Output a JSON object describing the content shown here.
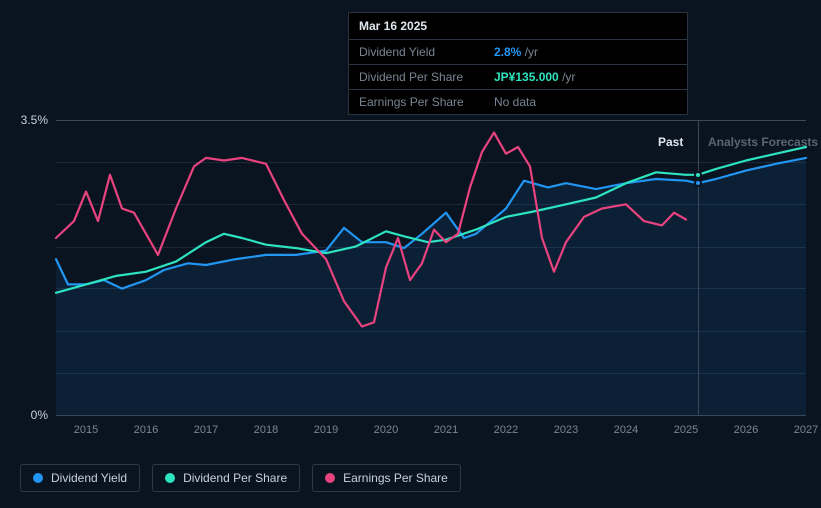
{
  "tooltip": {
    "date": "Mar 16 2025",
    "rows": [
      {
        "label": "Dividend Yield",
        "value": "2.8%",
        "suffix": "/yr",
        "color": "#2196f3"
      },
      {
        "label": "Dividend Per Share",
        "value": "JP¥135.000",
        "suffix": "/yr",
        "color": "#2de3c0"
      },
      {
        "label": "Earnings Per Share",
        "value": "No data",
        "suffix": "",
        "color": "#7a8594"
      }
    ]
  },
  "chart": {
    "type": "line",
    "background_color": "#0a1420",
    "grid_color": "#1a2838",
    "axis_color": "#3a4858",
    "text_color": "#c8d0dc",
    "muted_text_color": "#7a8594",
    "y_axis": {
      "min": 0,
      "max": 3.5,
      "labels": [
        "0%",
        "3.5%"
      ],
      "label_positions": [
        100,
        0
      ]
    },
    "x_axis": {
      "min": 2014.5,
      "max": 2027,
      "ticks": [
        2015,
        2016,
        2017,
        2018,
        2019,
        2020,
        2021,
        2022,
        2023,
        2024,
        2025,
        2026,
        2027
      ]
    },
    "divider_year": 2025.2,
    "past_label": "Past",
    "forecast_label": "Analysts Forecasts",
    "series": [
      {
        "name": "Dividend Yield",
        "color": "#2196f3",
        "fill": true,
        "fill_color": "rgba(33,150,243,0.10)",
        "marker_at_divider": 2.75,
        "data": [
          [
            2014.5,
            1.85
          ],
          [
            2014.7,
            1.55
          ],
          [
            2015.0,
            1.55
          ],
          [
            2015.3,
            1.6
          ],
          [
            2015.6,
            1.5
          ],
          [
            2016.0,
            1.6
          ],
          [
            2016.3,
            1.72
          ],
          [
            2016.7,
            1.8
          ],
          [
            2017.0,
            1.78
          ],
          [
            2017.5,
            1.85
          ],
          [
            2018.0,
            1.9
          ],
          [
            2018.5,
            1.9
          ],
          [
            2019.0,
            1.95
          ],
          [
            2019.3,
            2.22
          ],
          [
            2019.6,
            2.05
          ],
          [
            2020.0,
            2.05
          ],
          [
            2020.3,
            1.98
          ],
          [
            2020.6,
            2.15
          ],
          [
            2021.0,
            2.4
          ],
          [
            2021.3,
            2.1
          ],
          [
            2021.5,
            2.15
          ],
          [
            2022.0,
            2.45
          ],
          [
            2022.3,
            2.78
          ],
          [
            2022.7,
            2.7
          ],
          [
            2023.0,
            2.75
          ],
          [
            2023.5,
            2.68
          ],
          [
            2024.0,
            2.75
          ],
          [
            2024.5,
            2.8
          ],
          [
            2025.0,
            2.78
          ],
          [
            2025.2,
            2.75
          ],
          [
            2025.5,
            2.8
          ],
          [
            2026.0,
            2.9
          ],
          [
            2026.5,
            2.98
          ],
          [
            2027.0,
            3.05
          ]
        ]
      },
      {
        "name": "Dividend Per Share",
        "color": "#2de3c0",
        "fill": false,
        "marker_at_divider": 2.85,
        "data": [
          [
            2014.5,
            1.45
          ],
          [
            2015.0,
            1.55
          ],
          [
            2015.5,
            1.65
          ],
          [
            2016.0,
            1.7
          ],
          [
            2016.5,
            1.82
          ],
          [
            2017.0,
            2.05
          ],
          [
            2017.3,
            2.15
          ],
          [
            2017.6,
            2.1
          ],
          [
            2018.0,
            2.02
          ],
          [
            2018.5,
            1.98
          ],
          [
            2019.0,
            1.92
          ],
          [
            2019.5,
            2.0
          ],
          [
            2020.0,
            2.18
          ],
          [
            2020.3,
            2.12
          ],
          [
            2020.7,
            2.05
          ],
          [
            2021.0,
            2.08
          ],
          [
            2021.5,
            2.2
          ],
          [
            2022.0,
            2.35
          ],
          [
            2022.5,
            2.42
          ],
          [
            2023.0,
            2.5
          ],
          [
            2023.5,
            2.58
          ],
          [
            2024.0,
            2.75
          ],
          [
            2024.5,
            2.88
          ],
          [
            2025.0,
            2.85
          ],
          [
            2025.2,
            2.85
          ],
          [
            2025.5,
            2.92
          ],
          [
            2026.0,
            3.02
          ],
          [
            2026.5,
            3.1
          ],
          [
            2027.0,
            3.18
          ]
        ]
      },
      {
        "name": "Earnings Per Share",
        "color": "#e8437f",
        "fill": false,
        "data": [
          [
            2014.5,
            2.1
          ],
          [
            2014.8,
            2.3
          ],
          [
            2015.0,
            2.65
          ],
          [
            2015.2,
            2.3
          ],
          [
            2015.4,
            2.85
          ],
          [
            2015.6,
            2.45
          ],
          [
            2015.8,
            2.4
          ],
          [
            2016.0,
            2.15
          ],
          [
            2016.2,
            1.9
          ],
          [
            2016.5,
            2.45
          ],
          [
            2016.8,
            2.95
          ],
          [
            2017.0,
            3.05
          ],
          [
            2017.3,
            3.02
          ],
          [
            2017.6,
            3.05
          ],
          [
            2018.0,
            2.98
          ],
          [
            2018.3,
            2.55
          ],
          [
            2018.6,
            2.15
          ],
          [
            2019.0,
            1.85
          ],
          [
            2019.3,
            1.35
          ],
          [
            2019.6,
            1.05
          ],
          [
            2019.8,
            1.1
          ],
          [
            2020.0,
            1.75
          ],
          [
            2020.2,
            2.1
          ],
          [
            2020.4,
            1.6
          ],
          [
            2020.6,
            1.8
          ],
          [
            2020.8,
            2.2
          ],
          [
            2021.0,
            2.05
          ],
          [
            2021.2,
            2.15
          ],
          [
            2021.4,
            2.7
          ],
          [
            2021.6,
            3.12
          ],
          [
            2021.8,
            3.35
          ],
          [
            2022.0,
            3.1
          ],
          [
            2022.2,
            3.18
          ],
          [
            2022.4,
            2.95
          ],
          [
            2022.6,
            2.1
          ],
          [
            2022.8,
            1.7
          ],
          [
            2023.0,
            2.05
          ],
          [
            2023.3,
            2.35
          ],
          [
            2023.6,
            2.45
          ],
          [
            2024.0,
            2.5
          ],
          [
            2024.3,
            2.3
          ],
          [
            2024.6,
            2.25
          ],
          [
            2024.8,
            2.4
          ],
          [
            2025.0,
            2.32
          ]
        ]
      }
    ],
    "legend": [
      {
        "label": "Dividend Yield",
        "color": "#2196f3"
      },
      {
        "label": "Dividend Per Share",
        "color": "#2de3c0"
      },
      {
        "label": "Earnings Per Share",
        "color": "#e8437f"
      }
    ]
  }
}
